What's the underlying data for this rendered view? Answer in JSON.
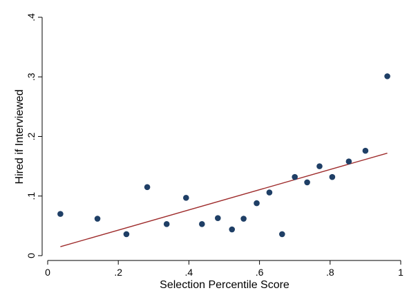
{
  "chart_data": {
    "type": "scatter",
    "xlabel": "Selection Percentile Score",
    "ylabel": "Hired if Interviewed",
    "xlim": [
      0,
      1
    ],
    "ylim": [
      0,
      0.4
    ],
    "x_ticks": [
      {
        "value": 0,
        "label": "0"
      },
      {
        "value": 0.2,
        "label": ".2"
      },
      {
        "value": 0.4,
        "label": ".4"
      },
      {
        "value": 0.6,
        "label": ".6"
      },
      {
        "value": 0.8,
        "label": ".8"
      },
      {
        "value": 1,
        "label": "1"
      }
    ],
    "y_ticks": [
      {
        "value": 0,
        "label": "0"
      },
      {
        "value": 0.1,
        "label": ".1"
      },
      {
        "value": 0.2,
        "label": ".2"
      },
      {
        "value": 0.3,
        "label": ".3"
      },
      {
        "value": 0.4,
        "label": ".4"
      }
    ],
    "grid": false,
    "series": [
      {
        "type": "scatter",
        "color": "#1f3f66",
        "points": [
          [
            0.036,
            0.07
          ],
          [
            0.141,
            0.062
          ],
          [
            0.223,
            0.036
          ],
          [
            0.282,
            0.115
          ],
          [
            0.337,
            0.053
          ],
          [
            0.392,
            0.097
          ],
          [
            0.437,
            0.053
          ],
          [
            0.482,
            0.063
          ],
          [
            0.522,
            0.044
          ],
          [
            0.555,
            0.062
          ],
          [
            0.592,
            0.088
          ],
          [
            0.628,
            0.106
          ],
          [
            0.664,
            0.036
          ],
          [
            0.7,
            0.132
          ],
          [
            0.735,
            0.123
          ],
          [
            0.77,
            0.15
          ],
          [
            0.806,
            0.132
          ],
          [
            0.853,
            0.158
          ],
          [
            0.9,
            0.176
          ],
          [
            0.962,
            0.301
          ]
        ]
      },
      {
        "type": "line",
        "color": "#9e2b2b",
        "points": [
          [
            0.036,
            0.015
          ],
          [
            0.962,
            0.172
          ]
        ]
      }
    ]
  }
}
